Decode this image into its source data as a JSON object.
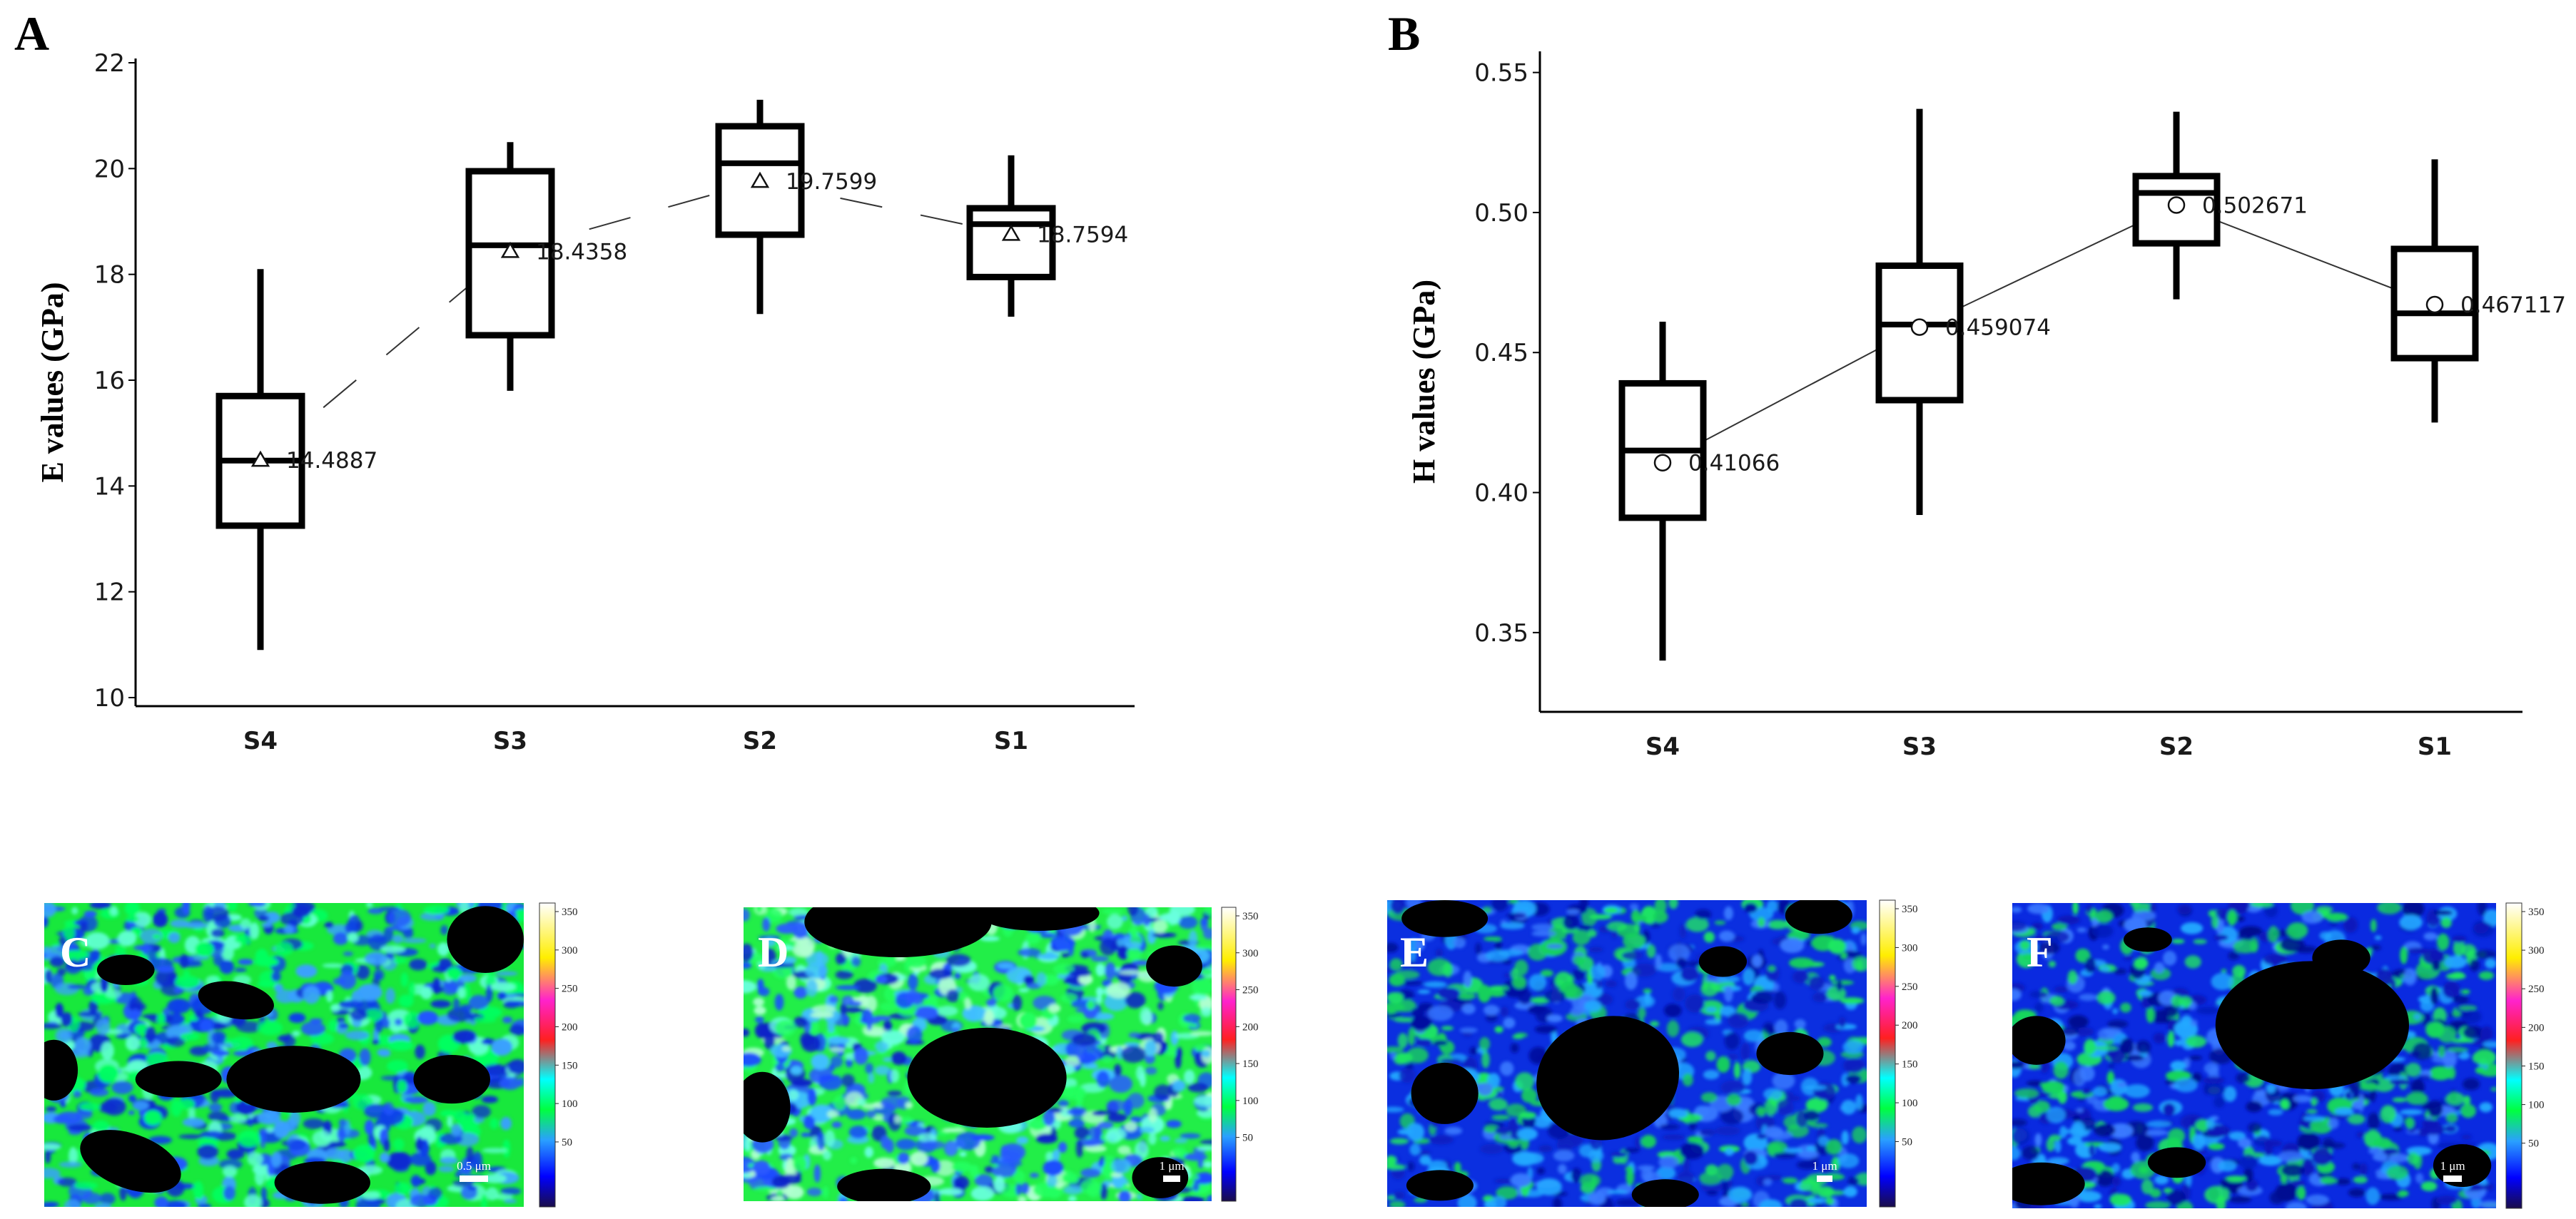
{
  "panel_labels": {
    "a": "A",
    "b": "B"
  },
  "chart_data": [
    {
      "type": "box",
      "panel": "A",
      "ylabel": "E values (GPa)",
      "ylim": [
        10,
        22
      ],
      "yticks": [
        10,
        12,
        14,
        16,
        18,
        20,
        22
      ],
      "categories": [
        "S4",
        "S3",
        "S2",
        "S1"
      ],
      "boxes": [
        {
          "min": 10.9,
          "q1": 13.25,
          "median": 14.48,
          "q3": 15.7,
          "max": 18.1
        },
        {
          "min": 15.8,
          "q1": 16.85,
          "median": 18.55,
          "q3": 19.95,
          "max": 20.5
        },
        {
          "min": 17.25,
          "q1": 18.75,
          "median": 20.1,
          "q3": 20.8,
          "max": 21.3
        },
        {
          "min": 17.2,
          "q1": 17.95,
          "median": 18.95,
          "q3": 19.25,
          "max": 20.25
        }
      ],
      "means": [
        14.4887,
        18.4358,
        19.7599,
        18.7594
      ],
      "mean_labels": [
        "14.4887",
        "18.4358",
        "19.7599",
        "18.7594"
      ],
      "mean_marker": "triangle",
      "mean_line": "dashed"
    },
    {
      "type": "box",
      "panel": "B",
      "ylabel": "H values (GPa)",
      "ylim": [
        0.325,
        0.555
      ],
      "yticks": [
        0.35,
        0.4,
        0.45,
        0.5,
        0.55
      ],
      "ytick_labels": [
        "0.35",
        "0.40",
        "0.45",
        "0.50",
        "0.55"
      ],
      "categories": [
        "S4",
        "S3",
        "S2",
        "S1"
      ],
      "boxes": [
        {
          "min": 0.34,
          "q1": 0.391,
          "median": 0.415,
          "q3": 0.439,
          "max": 0.461
        },
        {
          "min": 0.392,
          "q1": 0.433,
          "median": 0.46,
          "q3": 0.481,
          "max": 0.537
        },
        {
          "min": 0.469,
          "q1": 0.489,
          "median": 0.507,
          "q3": 0.513,
          "max": 0.536
        },
        {
          "min": 0.425,
          "q1": 0.448,
          "median": 0.464,
          "q3": 0.487,
          "max": 0.519
        }
      ],
      "means": [
        0.41066,
        0.459074,
        0.502671,
        0.467117
      ],
      "mean_labels": [
        "0.41066",
        "0.459074",
        "0.502671",
        "0.467117"
      ],
      "mean_marker": "circle",
      "mean_line": "solid"
    }
  ],
  "maps": {
    "colorbar_ticks": [
      "350",
      "300",
      "250",
      "200",
      "150",
      "100",
      "50"
    ],
    "panels": [
      {
        "letter": "C",
        "scale": "0.5 μm"
      },
      {
        "letter": "D",
        "scale": "1 μm"
      },
      {
        "letter": "E",
        "scale": "1 μm"
      },
      {
        "letter": "F",
        "scale": "1 μm"
      }
    ]
  }
}
